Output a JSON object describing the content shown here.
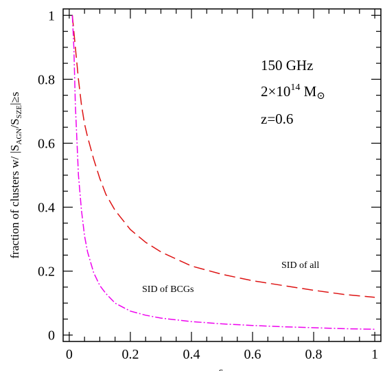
{
  "chart_data": {
    "type": "line",
    "title": "",
    "xlabel": "s",
    "ylabel": "fraction of clusters w/ |S_AGN/S_SZE| ≥ s",
    "ylabel_parts": {
      "prefix": "fraction of clusters w/ |S",
      "sub1": "AGN",
      "mid": "/S",
      "sub2": "SZE",
      "suffix": "|≥s"
    },
    "xlim": [
      -0.02,
      1.02
    ],
    "ylim": [
      -0.02,
      1.02
    ],
    "xticks": [
      0,
      0.2,
      0.4,
      0.6,
      0.8,
      1
    ],
    "xtick_labels": [
      "0",
      "0.2",
      "0.4",
      "0.6",
      "0.8",
      "1"
    ],
    "yticks": [
      0,
      0.2,
      0.4,
      0.6,
      0.8,
      1
    ],
    "ytick_labels": [
      "0",
      "0.2",
      "0.4",
      "0.6",
      "0.8",
      "1"
    ],
    "annotations": {
      "line1": "150 GHz",
      "line2_pre": "2×10",
      "line2_sup": "14",
      "line2_post": " M",
      "line2_sun": "⊙",
      "line3": "z=0.6"
    },
    "series": [
      {
        "label": "SID of all",
        "color": "#dd1111",
        "dash": "long-dash",
        "x": [
          0.01,
          0.02,
          0.03,
          0.04,
          0.05,
          0.06,
          0.08,
          0.1,
          0.12,
          0.15,
          0.2,
          0.25,
          0.3,
          0.4,
          0.5,
          0.6,
          0.7,
          0.8,
          0.9,
          1.0
        ],
        "y": [
          1.0,
          0.9,
          0.8,
          0.72,
          0.66,
          0.62,
          0.55,
          0.49,
          0.44,
          0.39,
          0.33,
          0.29,
          0.26,
          0.216,
          0.19,
          0.17,
          0.155,
          0.14,
          0.127,
          0.118
        ]
      },
      {
        "label": "SID of BCGs",
        "color": "#ee00ee",
        "dash": "dash-dot",
        "x": [
          0.01,
          0.015,
          0.02,
          0.03,
          0.04,
          0.05,
          0.06,
          0.08,
          0.1,
          0.12,
          0.15,
          0.2,
          0.25,
          0.3,
          0.4,
          0.5,
          0.6,
          0.7,
          0.8,
          0.9,
          1.0
        ],
        "y": [
          1.0,
          0.9,
          0.72,
          0.5,
          0.39,
          0.31,
          0.26,
          0.195,
          0.155,
          0.13,
          0.1,
          0.075,
          0.062,
          0.053,
          0.042,
          0.035,
          0.03,
          0.026,
          0.023,
          0.02,
          0.018
        ]
      }
    ]
  }
}
